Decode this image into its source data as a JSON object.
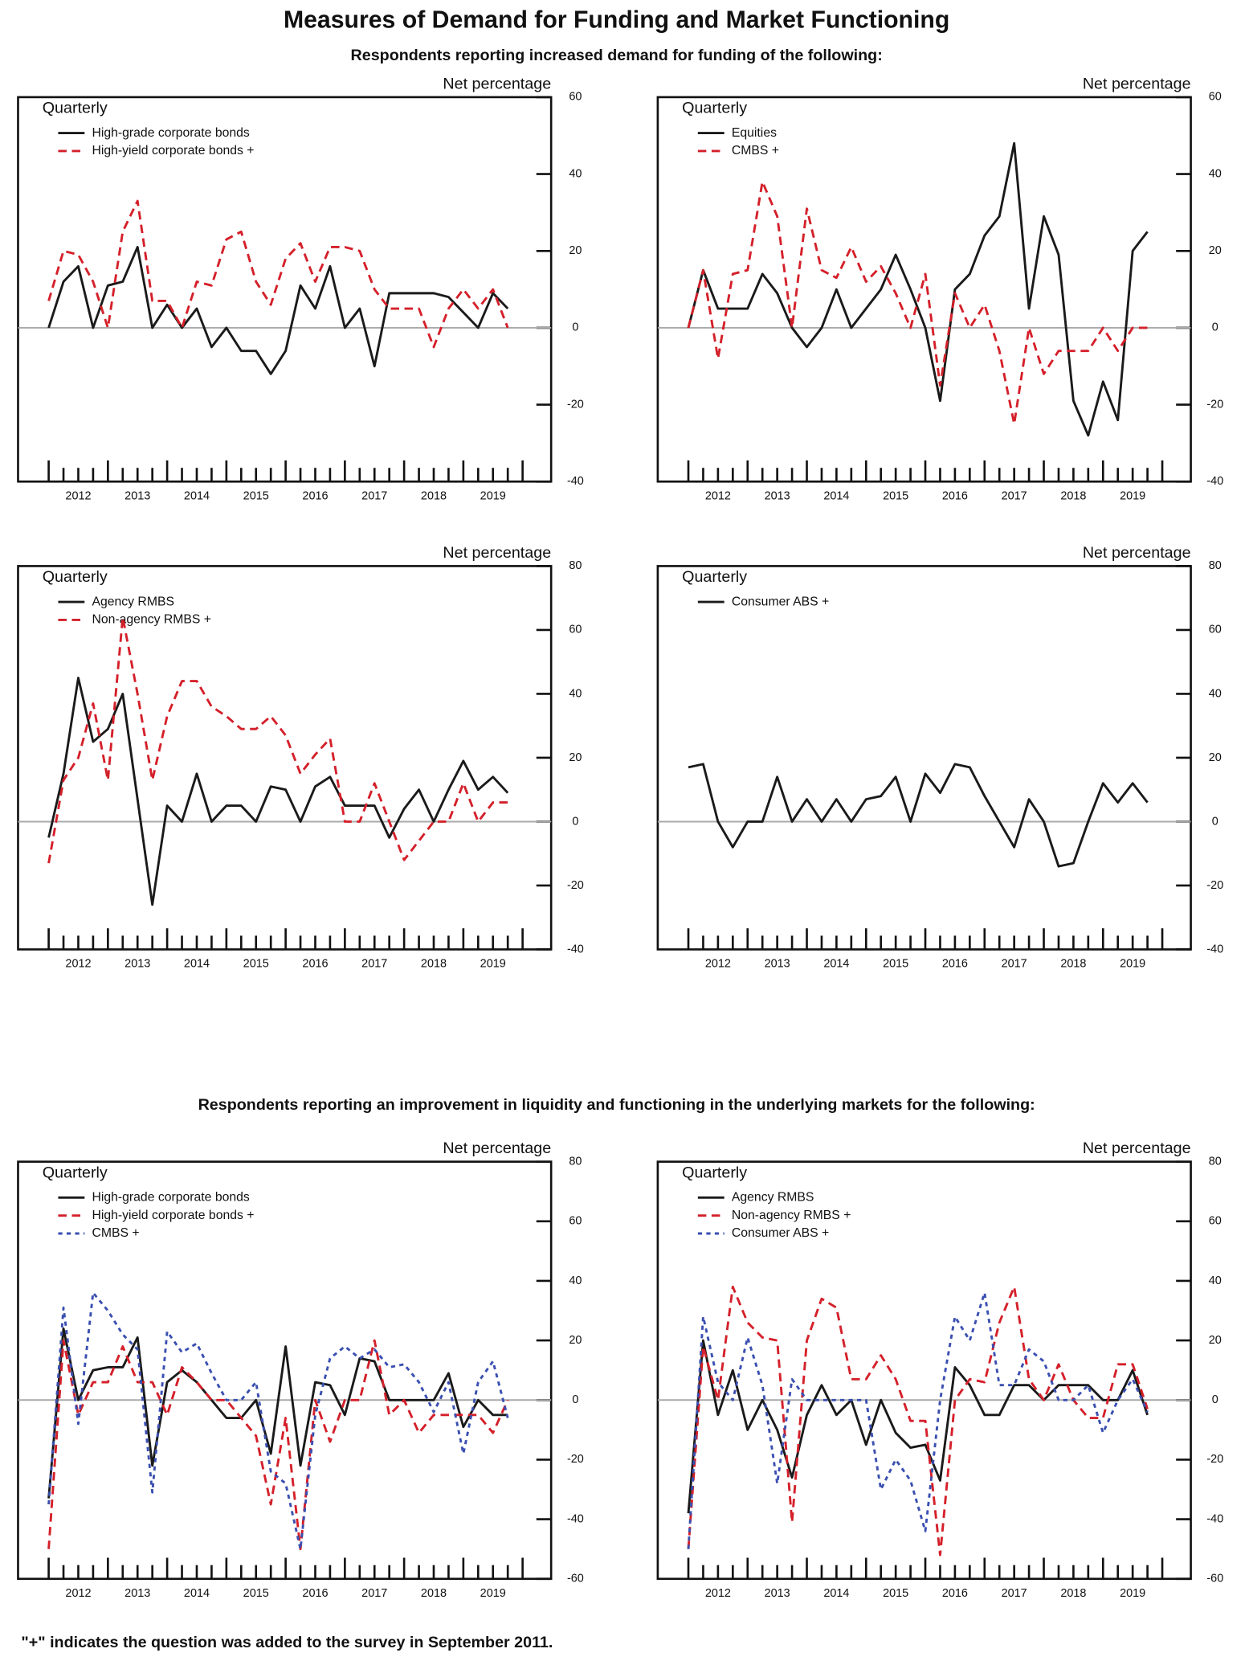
{
  "header": {
    "title": "Measures of Demand for Funding and Market Functioning",
    "subtitle_demand": "Respondents reporting increased demand for funding of the following:",
    "subtitle_liquidity": "Respondents reporting an improvement in liquidity and functioning in the underlying markets for the following:",
    "footnote": "\"+\" indicates the question was added to the survey in September 2011."
  },
  "chart_data": [
    {
      "type": "line",
      "axis_title": "Net percentage",
      "frequency": "Quarterly",
      "ylim": [
        -40,
        60
      ],
      "yticks": [
        -40,
        -20,
        0,
        20,
        40,
        60
      ],
      "x_labels": [
        2012,
        2013,
        2014,
        2015,
        2016,
        2017,
        2018,
        2019
      ],
      "series": [
        {
          "name": "High-grade corporate bonds",
          "color": "#1a1a1a",
          "values": [
            0,
            12,
            16,
            0,
            11,
            12,
            21,
            0,
            6,
            0,
            5,
            -5,
            0,
            -6,
            -6,
            -12,
            -6,
            11,
            5,
            16,
            0,
            5,
            -10,
            9,
            9,
            9,
            9,
            8,
            4,
            0,
            9,
            5
          ]
        },
        {
          "name": "High-yield corporate bonds +",
          "color": "#d4202a",
          "values": [
            7,
            20,
            19,
            12,
            0,
            25,
            33,
            7,
            7,
            0,
            12,
            11,
            23,
            25,
            12,
            6,
            18,
            22,
            12,
            21,
            21,
            20,
            10,
            5,
            5,
            5,
            -5,
            5,
            10,
            5,
            10,
            0
          ]
        }
      ]
    },
    {
      "type": "line",
      "axis_title": "Net percentage",
      "frequency": "Quarterly",
      "ylim": [
        -40,
        60
      ],
      "yticks": [
        -40,
        -20,
        0,
        20,
        40,
        60
      ],
      "x_labels": [
        2012,
        2013,
        2014,
        2015,
        2016,
        2017,
        2018,
        2019
      ],
      "series": [
        {
          "name": "Equities",
          "color": "#1a1a1a",
          "values": [
            0,
            15,
            5,
            5,
            5,
            14,
            9,
            0,
            -5,
            0,
            10,
            0,
            5,
            10,
            19,
            10,
            0,
            -19,
            10,
            14,
            24,
            29,
            48,
            5,
            29,
            19,
            -19,
            -28,
            -14,
            -24,
            20,
            25
          ]
        },
        {
          "name": "CMBS +",
          "color": "#d4202a",
          "values": [
            0,
            15,
            -8,
            14,
            15,
            38,
            29,
            0,
            31,
            15,
            13,
            21,
            12,
            16,
            9,
            0,
            14,
            -15,
            9,
            0,
            6,
            -6,
            -25,
            0,
            -12,
            -6,
            -6,
            -6,
            0,
            -6,
            0,
            0
          ]
        }
      ]
    },
    {
      "type": "line",
      "axis_title": "Net percentage",
      "frequency": "Quarterly",
      "ylim": [
        -40,
        80
      ],
      "yticks": [
        -40,
        -20,
        0,
        20,
        40,
        60,
        80
      ],
      "x_labels": [
        2012,
        2013,
        2014,
        2015,
        2016,
        2017,
        2018,
        2019
      ],
      "series": [
        {
          "name": "Agency RMBS",
          "color": "#1a1a1a",
          "values": [
            -5,
            15,
            45,
            25,
            29,
            40,
            7,
            -26,
            5,
            0,
            15,
            0,
            5,
            5,
            0,
            11,
            10,
            0,
            11,
            14,
            5,
            5,
            5,
            -5,
            4,
            10,
            0,
            10,
            19,
            10,
            14,
            9
          ]
        },
        {
          "name": "Non-agency RMBS +",
          "color": "#d4202a",
          "values": [
            -13,
            13,
            20,
            37,
            13,
            64,
            40,
            13,
            33,
            44,
            44,
            36,
            33,
            29,
            29,
            33,
            27,
            15,
            21,
            26,
            0,
            0,
            12,
            0,
            -12,
            -6,
            0,
            0,
            12,
            0,
            6,
            6
          ]
        }
      ]
    },
    {
      "type": "line",
      "axis_title": "Net percentage",
      "frequency": "Quarterly",
      "ylim": [
        -40,
        80
      ],
      "yticks": [
        -40,
        -20,
        0,
        20,
        40,
        60,
        80
      ],
      "x_labels": [
        2012,
        2013,
        2014,
        2015,
        2016,
        2017,
        2018,
        2019
      ],
      "series": [
        {
          "name": "Consumer ABS +",
          "color": "#1a1a1a",
          "values": [
            17,
            18,
            0,
            -8,
            0,
            0,
            14,
            0,
            7,
            0,
            7,
            0,
            7,
            8,
            14,
            0,
            15,
            9,
            18,
            17,
            8,
            0,
            -8,
            7,
            0,
            -14,
            -13,
            0,
            12,
            6,
            12,
            6
          ]
        }
      ]
    },
    {
      "type": "line",
      "axis_title": "Net percentage",
      "frequency": "Quarterly",
      "ylim": [
        -60,
        80
      ],
      "yticks": [
        -60,
        -40,
        -20,
        0,
        20,
        40,
        60,
        80
      ],
      "x_labels": [
        2012,
        2013,
        2014,
        2015,
        2016,
        2017,
        2018,
        2019
      ],
      "series": [
        {
          "name": "High-grade corporate bonds",
          "color": "#1a1a1a",
          "values": [
            -33,
            24,
            0,
            10,
            11,
            11,
            21,
            -22,
            6,
            10,
            6,
            0,
            -6,
            -6,
            0,
            -18,
            18,
            -22,
            6,
            5,
            -5,
            14,
            13,
            0,
            0,
            0,
            0,
            9,
            -9,
            0,
            -5,
            -5
          ]
        },
        {
          "name": "High-yield corporate bonds +",
          "color": "#d4202a",
          "values": [
            -50,
            20,
            -5,
            6,
            6,
            18,
            6,
            6,
            -5,
            11,
            6,
            0,
            0,
            -6,
            -12,
            -35,
            -6,
            -50,
            0,
            -14,
            0,
            0,
            20,
            -5,
            0,
            -11,
            -5,
            -5,
            -5,
            -5,
            -11,
            0
          ]
        },
        {
          "name": "CMBS +",
          "color": "#3a4fb0",
          "values": [
            -35,
            31,
            -8,
            36,
            30,
            22,
            17,
            -31,
            23,
            16,
            19,
            9,
            0,
            0,
            6,
            -24,
            -28,
            -50,
            -5,
            14,
            18,
            14,
            17,
            11,
            12,
            6,
            -4,
            6,
            -18,
            6,
            13,
            -6
          ]
        }
      ]
    },
    {
      "type": "line",
      "axis_title": "Net percentage",
      "frequency": "Quarterly",
      "ylim": [
        -60,
        80
      ],
      "yticks": [
        -60,
        -40,
        -20,
        0,
        20,
        40,
        60,
        80
      ],
      "x_labels": [
        2012,
        2013,
        2014,
        2015,
        2016,
        2017,
        2018,
        2019
      ],
      "series": [
        {
          "name": "Agency RMBS",
          "color": "#1a1a1a",
          "values": [
            -38,
            20,
            -5,
            10,
            -10,
            0,
            -10,
            -26,
            -5,
            5,
            -5,
            0,
            -15,
            0,
            -11,
            -16,
            -15,
            -27,
            11,
            5,
            -5,
            -5,
            5,
            5,
            0,
            5,
            5,
            5,
            0,
            0,
            10,
            -5
          ]
        },
        {
          "name": "Non-agency RMBS +",
          "color": "#d4202a",
          "values": [
            -50,
            18,
            0,
            38,
            26,
            21,
            20,
            -41,
            20,
            34,
            31,
            7,
            7,
            15,
            7,
            -7,
            -7,
            -52,
            0,
            7,
            6,
            26,
            38,
            7,
            0,
            12,
            0,
            -6,
            -6,
            12,
            12,
            -3
          ]
        },
        {
          "name": "Consumer ABS +",
          "color": "#3a4fb0",
          "values": [
            -50,
            28,
            6,
            0,
            21,
            5,
            -28,
            7,
            0,
            0,
            0,
            0,
            0,
            -30,
            -20,
            -27,
            -44,
            0,
            28,
            20,
            36,
            5,
            5,
            17,
            13,
            0,
            0,
            5,
            -11,
            0,
            7,
            -4
          ]
        }
      ]
    }
  ]
}
